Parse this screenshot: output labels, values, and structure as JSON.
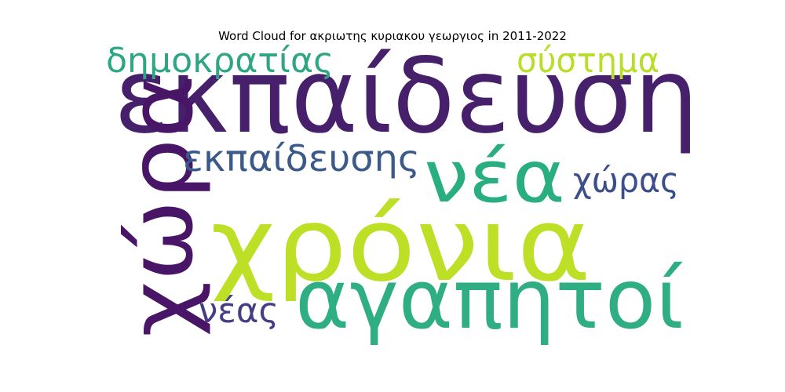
{
  "chart_data": {
    "type": "wordcloud",
    "title": "Word Cloud for ακριωτης κυριακου γεωργιος in 2011-2022",
    "words": [
      {
        "text": "εκπαίδευση",
        "weight": 1.0,
        "color": "#46206a"
      },
      {
        "text": "χρόνια",
        "weight": 0.95,
        "color": "#bddf26"
      },
      {
        "text": "χώρα",
        "weight": 0.8,
        "color": "#481567"
      },
      {
        "text": "αγαπητοί",
        "weight": 0.7,
        "color": "#2fad83"
      },
      {
        "text": "νέα",
        "weight": 0.6,
        "color": "#29af7f"
      },
      {
        "text": "εκπαίδευσης",
        "weight": 0.3,
        "color": "#3b5a8a"
      },
      {
        "text": "δημοκρατίας",
        "weight": 0.28,
        "color": "#2ea684"
      },
      {
        "text": "σύστημα",
        "weight": 0.26,
        "color": "#b8dd2a"
      },
      {
        "text": "χώρας",
        "weight": 0.25,
        "color": "#3c4f8a"
      },
      {
        "text": "νέας",
        "weight": 0.22,
        "color": "#433e85"
      }
    ]
  }
}
